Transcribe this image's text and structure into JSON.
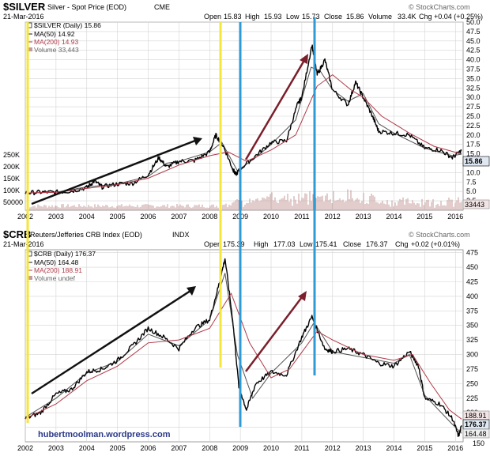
{
  "watermark": "hubertmoolman.wordpress.com",
  "colors": {
    "price": "#000000",
    "ma50": "#1a1a1a",
    "ma200": "#b03a48",
    "volume": "#c49a9a",
    "yellow_line": "#f5e63a",
    "blue_line": "#2e9bd6",
    "up_arrow_black": "#111111",
    "up_arrow_red": "#7a1f2b",
    "grid": "#d4d4d4",
    "last_box": "#dfe8f2"
  },
  "chart_data": [
    {
      "type": "line",
      "symbol": "$SILVER",
      "title": "Silver - Spot Price (EOD)",
      "exchange": "CME",
      "date": "21-Mar-2016",
      "quote": {
        "open_label": "Open",
        "open": "15.83",
        "high_label": "High",
        "high": "15.93",
        "low_label": "Low",
        "low": "15.73",
        "close_label": "Close",
        "close": "15.86",
        "volume_label": "Volume",
        "volume": "33.4K",
        "chg_label": "Chg",
        "chg": "+0.04 (+0.25%)"
      },
      "watermark": "© StockCharts.com",
      "legend": [
        {
          "key": "price",
          "label": "$SILVER (Daily) 15.86"
        },
        {
          "key": "ma50",
          "label": "MA(50) 14.92"
        },
        {
          "key": "ma200",
          "label": "MA(200) 14.93"
        },
        {
          "key": "volume",
          "label": "Volume 33,443"
        }
      ],
      "ylim": [
        0,
        50
      ],
      "y_ticks": [
        2.5,
        5.0,
        7.5,
        10.0,
        12.5,
        15.0,
        17.5,
        20.0,
        22.5,
        25.0,
        27.5,
        30.0,
        32.5,
        35.0,
        37.5,
        40.0,
        42.5,
        45.0,
        47.5,
        50.0
      ],
      "y_tick_labels": [
        "2.5",
        "5.0",
        "7.5",
        "10.0",
        "12.5",
        "15.0",
        "17.5",
        "20.0",
        "22.5",
        "25.0",
        "27.5",
        "30.0",
        "32.5",
        "35.0",
        "37.5",
        "40.0",
        "42.5",
        "45.0",
        "47.5",
        "50.0"
      ],
      "volume_ticks": [
        "250K",
        "200K",
        "150K",
        "100K",
        "50000"
      ],
      "last_value_labels": [
        "15.86",
        "33443"
      ],
      "x_range": [
        2002.0,
        2016.25
      ],
      "x_ticks": [
        "2002",
        "2003",
        "2004",
        "2005",
        "2006",
        "2007",
        "2008",
        "2009",
        "2010",
        "2011",
        "2012",
        "2013",
        "2014",
        "2015",
        "2016"
      ],
      "series": [
        {
          "name": "$SILVER",
          "x": [
            2002.0,
            2002.5,
            2003.0,
            2003.5,
            2004.0,
            2004.25,
            2004.5,
            2005.0,
            2005.5,
            2006.0,
            2006.35,
            2006.6,
            2007.0,
            2007.5,
            2008.0,
            2008.2,
            2008.45,
            2008.75,
            2008.85,
            2009.0,
            2009.5,
            2010.0,
            2010.5,
            2010.85,
            2011.0,
            2011.33,
            2011.5,
            2011.75,
            2012.0,
            2012.5,
            2012.75,
            2013.0,
            2013.3,
            2013.5,
            2014.0,
            2014.5,
            2015.0,
            2015.5,
            2015.9,
            2016.2
          ],
          "values": [
            4.6,
            4.8,
            4.8,
            5.1,
            6.0,
            7.8,
            6.2,
            7.0,
            7.2,
            9.5,
            14.0,
            11.5,
            13.0,
            13.2,
            15.5,
            20.0,
            17.0,
            11.0,
            9.5,
            11.0,
            14.5,
            18.0,
            18.5,
            28.0,
            30.0,
            44.0,
            36.0,
            40.0,
            32.0,
            28.0,
            34.0,
            30.0,
            25.0,
            21.0,
            20.5,
            20.0,
            16.5,
            16.0,
            14.0,
            15.86
          ]
        },
        {
          "name": "MA(50)",
          "x": [
            2002.0,
            2003.0,
            2004.0,
            2005.0,
            2006.0,
            2006.6,
            2007.0,
            2008.0,
            2008.4,
            2008.9,
            2009.5,
            2010.0,
            2010.8,
            2011.3,
            2011.6,
            2012.0,
            2012.5,
            2013.0,
            2013.5,
            2014.0,
            2015.0,
            2015.9,
            2016.2
          ],
          "values": [
            4.6,
            4.8,
            6.2,
            7.0,
            9.0,
            12.5,
            13.0,
            15.5,
            18.0,
            10.5,
            14.0,
            17.5,
            24.0,
            38.0,
            37.0,
            32.0,
            29.0,
            31.0,
            23.0,
            20.5,
            16.5,
            14.5,
            14.92
          ]
        },
        {
          "name": "MA(200)",
          "x": [
            2002.0,
            2003.0,
            2004.0,
            2005.0,
            2006.0,
            2007.0,
            2008.0,
            2008.6,
            2009.2,
            2010.0,
            2010.8,
            2011.5,
            2012.0,
            2012.6,
            2013.0,
            2013.6,
            2014.5,
            2015.3,
            2016.2
          ],
          "values": [
            4.6,
            4.8,
            5.8,
            6.8,
            8.5,
            12.0,
            14.5,
            15.5,
            13.0,
            16.0,
            20.0,
            33.0,
            36.0,
            32.0,
            30.0,
            25.0,
            20.5,
            17.0,
            14.93
          ]
        }
      ]
    },
    {
      "type": "line",
      "symbol": "$CRB",
      "title": "Reuters/Jefferies CRB Index (EOD)",
      "exchange": "INDX",
      "date": "21-Mar-2016",
      "quote": {
        "open_label": "Open",
        "open": "175.39",
        "high_label": "High",
        "high": "177.03",
        "low_label": "Low",
        "low": "175.41",
        "close_label": "Close",
        "close": "176.37",
        "chg_label": "Chg",
        "chg": "+0.02 (+0.01%)"
      },
      "watermark": "© StockCharts.com",
      "legend": [
        {
          "key": "price",
          "label": "$CRB (Daily) 176.37"
        },
        {
          "key": "ma50",
          "label": "MA(50) 164.48"
        },
        {
          "key": "ma200",
          "label": "MA(200) 188.91"
        },
        {
          "key": "volume",
          "label": "Volume undef"
        }
      ],
      "ylim": [
        150,
        480
      ],
      "y_ticks": [
        175,
        200,
        225,
        250,
        275,
        300,
        325,
        350,
        375,
        400,
        425,
        450,
        475
      ],
      "y_tick_labels": [
        "175",
        "200",
        "225",
        "250",
        "275",
        "300",
        "325",
        "350",
        "375",
        "400",
        "425",
        "450",
        "475"
      ],
      "extra_ticks": [
        "150"
      ],
      "last_value_labels": [
        "188.91",
        "176.37",
        "164.48"
      ],
      "x_range": [
        2002.0,
        2016.25
      ],
      "x_ticks": [
        "2002",
        "2003",
        "2004",
        "2005",
        "2006",
        "2007",
        "2008",
        "2009",
        "2010",
        "2011",
        "2012",
        "2013",
        "2014",
        "2015",
        "2016"
      ],
      "series": [
        {
          "name": "$CRB",
          "x": [
            2002.0,
            2002.5,
            2003.0,
            2003.5,
            2004.0,
            2004.5,
            2005.0,
            2005.5,
            2006.0,
            2006.5,
            2007.0,
            2007.5,
            2008.0,
            2008.3,
            2008.5,
            2008.75,
            2008.95,
            2009.2,
            2009.5,
            2010.0,
            2010.5,
            2011.0,
            2011.33,
            2011.75,
            2012.0,
            2012.5,
            2013.0,
            2013.5,
            2014.0,
            2014.5,
            2014.8,
            2015.0,
            2015.5,
            2015.9,
            2016.1,
            2016.2
          ],
          "values": [
            190,
            200,
            232,
            240,
            270,
            275,
            290,
            315,
            345,
            330,
            310,
            345,
            360,
            420,
            465,
            360,
            245,
            205,
            250,
            270,
            265,
            330,
            365,
            310,
            305,
            310,
            300,
            285,
            280,
            305,
            280,
            225,
            215,
            190,
            160,
            176.37
          ]
        },
        {
          "name": "MA(50)",
          "x": [
            2002.0,
            2003.0,
            2004.0,
            2005.0,
            2006.0,
            2007.0,
            2008.0,
            2008.5,
            2008.9,
            2009.4,
            2010.0,
            2011.0,
            2011.4,
            2012.0,
            2013.0,
            2014.0,
            2014.5,
            2015.0,
            2015.9,
            2016.2
          ],
          "values": [
            192,
            225,
            268,
            288,
            335,
            315,
            360,
            440,
            300,
            225,
            268,
            320,
            355,
            305,
            295,
            285,
            300,
            230,
            180,
            164.48
          ]
        },
        {
          "name": "MA(200)",
          "x": [
            2002.0,
            2003.0,
            2004.0,
            2005.0,
            2006.0,
            2007.0,
            2008.0,
            2008.7,
            2009.3,
            2010.0,
            2010.6,
            2011.5,
            2012.0,
            2013.0,
            2014.0,
            2014.6,
            2015.2,
            2015.8,
            2016.2
          ],
          "values": [
            190,
            215,
            255,
            280,
            320,
            325,
            345,
            405,
            320,
            260,
            275,
            340,
            325,
            300,
            290,
            300,
            250,
            205,
            188.91
          ]
        }
      ]
    }
  ]
}
